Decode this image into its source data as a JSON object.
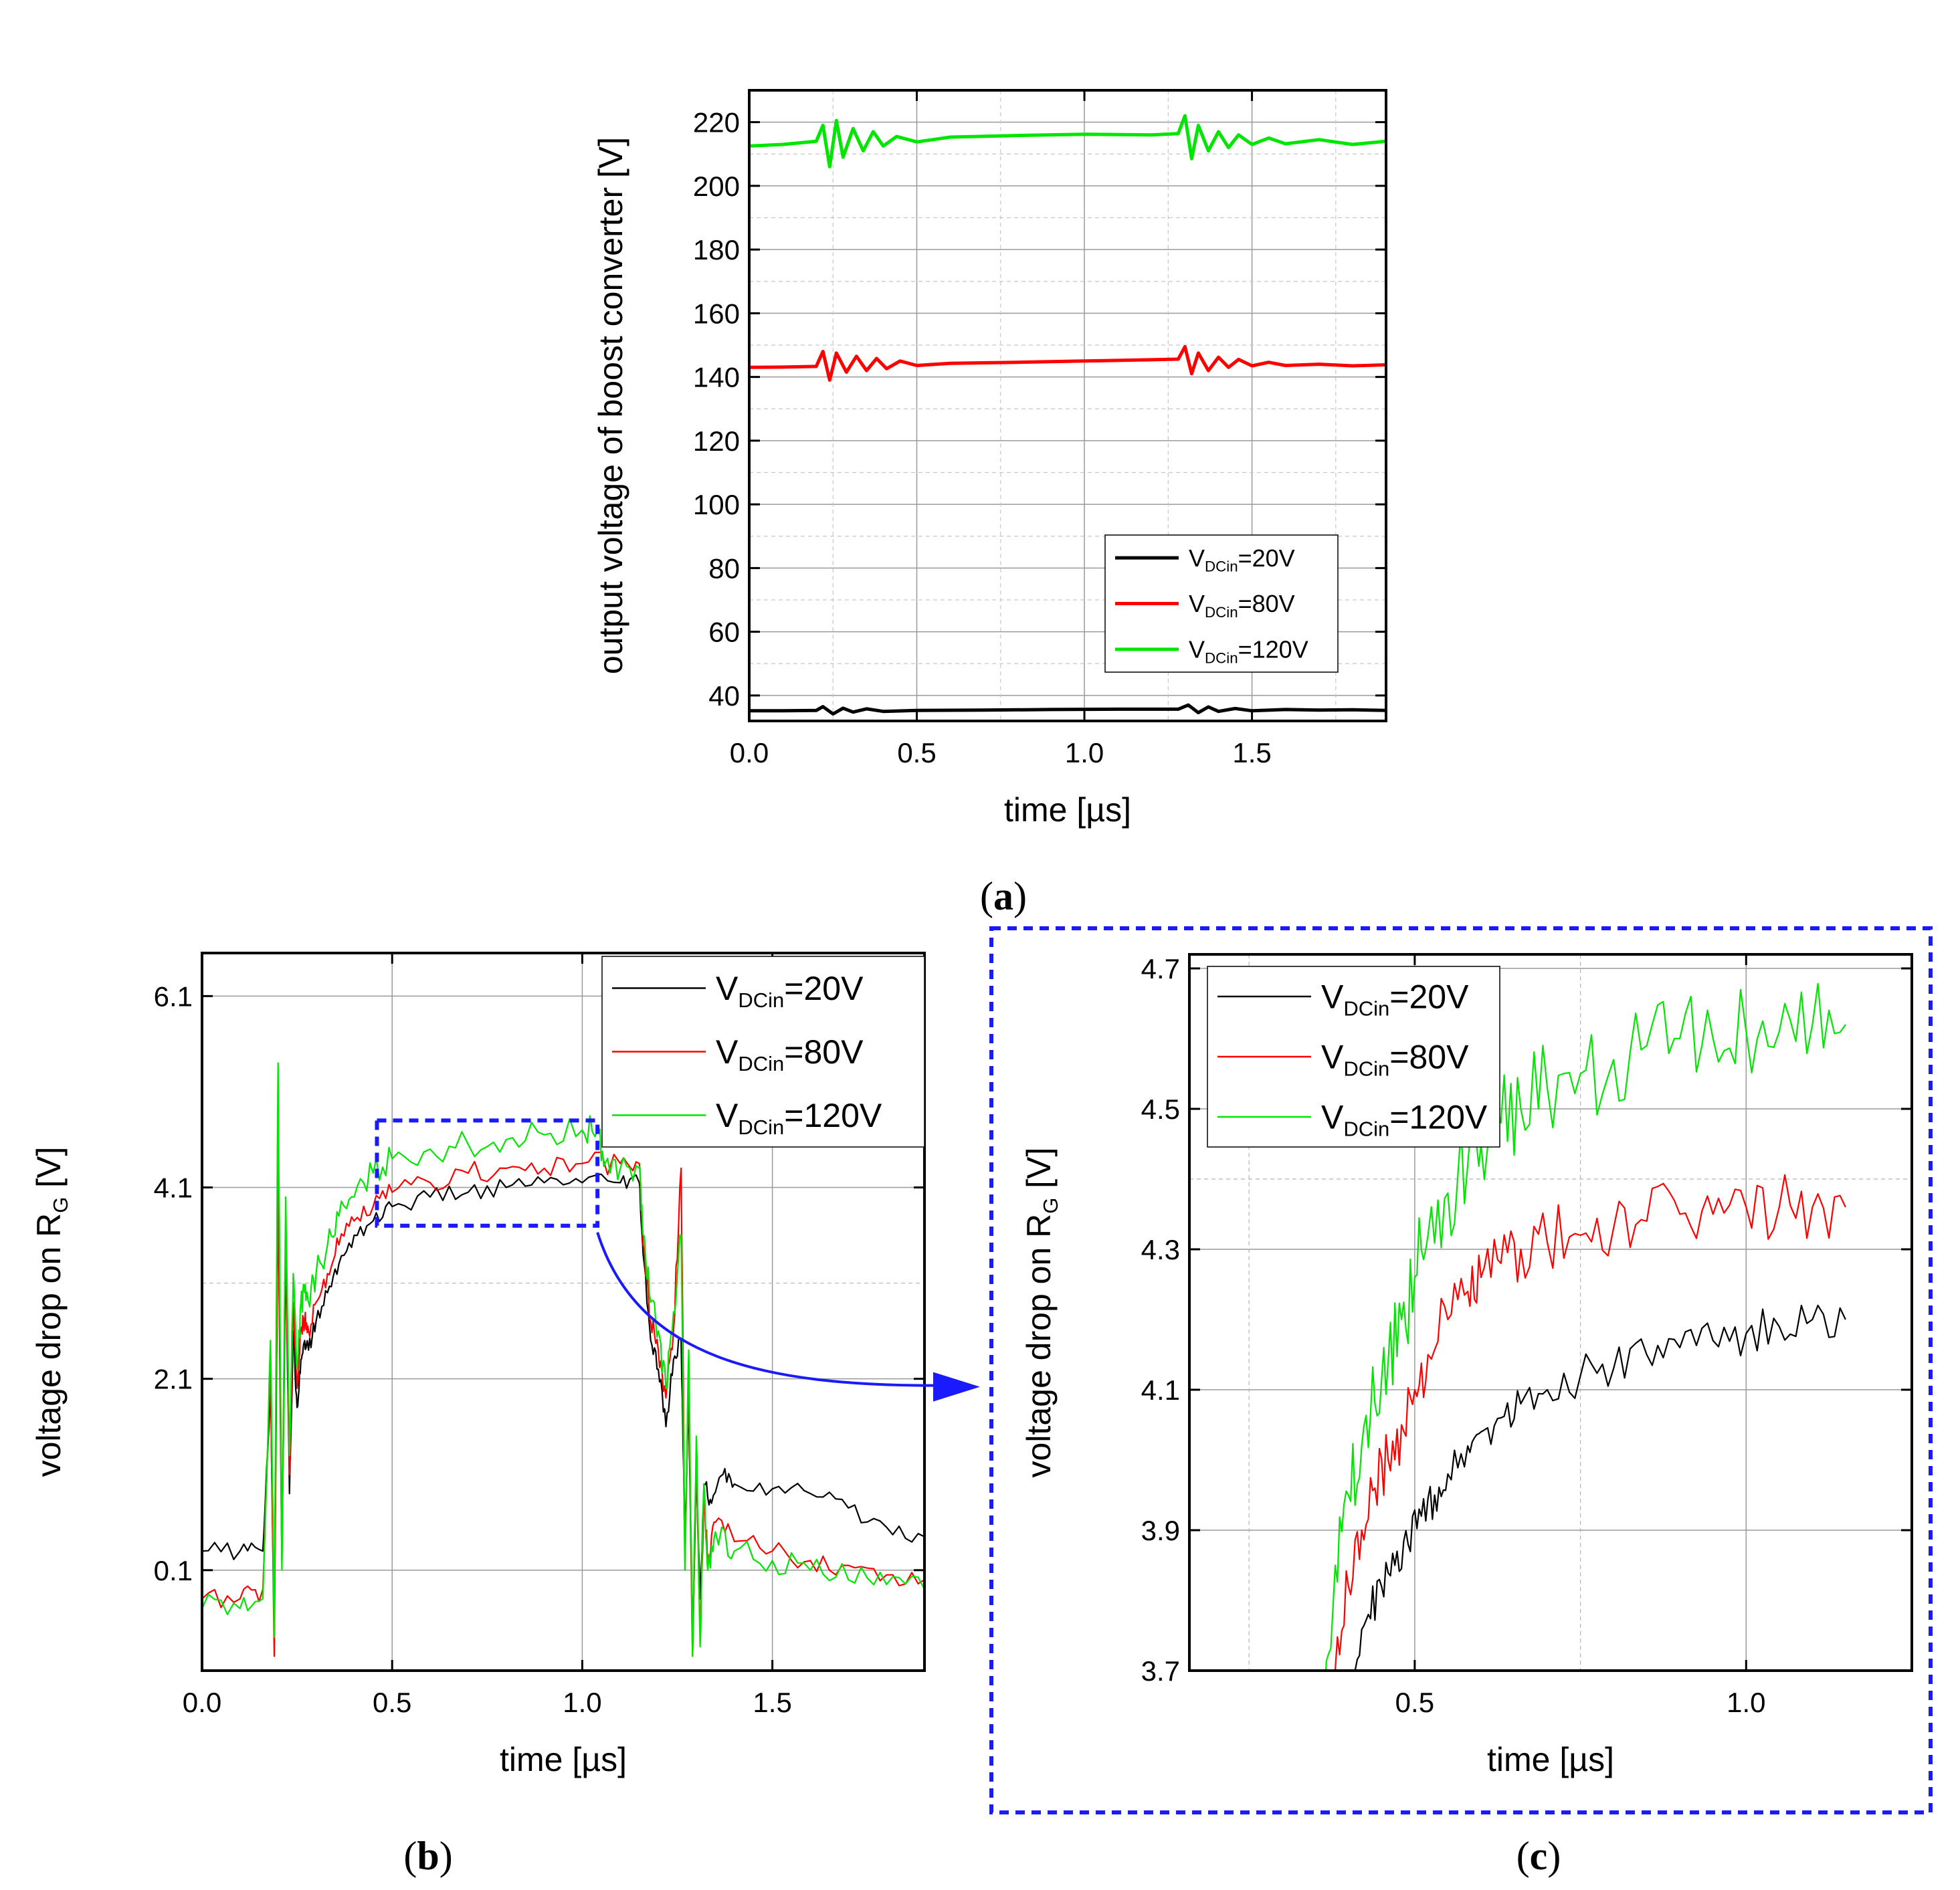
{
  "colors": {
    "black": "#000000",
    "red": "#ff0000",
    "green": "#00e600",
    "blue": "#1a1aff",
    "grid": "#9a9a9a"
  },
  "chart_data": [
    {
      "id": "a",
      "panel_label": "a",
      "type": "line",
      "xlabel": "time [µs]",
      "ylabel": "output voltage of boost converter [V]",
      "xlim": [
        0.0,
        1.9
      ],
      "ylim": [
        32,
        230
      ],
      "xticks": [
        0.0,
        0.5,
        1.0,
        1.5
      ],
      "xtick_labels": [
        "0.0",
        "0.5",
        "1.0",
        "1.5"
      ],
      "yticks": [
        40,
        60,
        80,
        100,
        120,
        140,
        160,
        180,
        200,
        220
      ],
      "ytick_labels": [
        "40",
        "60",
        "80",
        "100",
        "120",
        "140",
        "160",
        "180",
        "200",
        "220"
      ],
      "grid": true,
      "legend_position": "lower-right",
      "series": [
        {
          "key": "vdc20",
          "name_main": "V",
          "name_sub": "DCin",
          "name_tail": "=20V",
          "color": "#000000",
          "x": [
            0.0,
            0.1,
            0.2,
            0.22,
            0.25,
            0.28,
            0.31,
            0.35,
            0.4,
            0.5,
            0.7,
            0.9,
            1.1,
            1.28,
            1.31,
            1.34,
            1.37,
            1.4,
            1.45,
            1.5,
            1.6,
            1.7,
            1.8,
            1.9
          ],
          "y": [
            35.2,
            35.2,
            35.3,
            36.5,
            34.2,
            36.0,
            34.8,
            35.8,
            35.0,
            35.3,
            35.4,
            35.6,
            35.7,
            35.7,
            37.0,
            34.6,
            36.4,
            35.0,
            35.9,
            35.2,
            35.6,
            35.4,
            35.5,
            35.3
          ]
        },
        {
          "key": "vdc80",
          "name_main": "V",
          "name_sub": "DCin",
          "name_tail": "=80V",
          "color": "#ff0000",
          "x": [
            0.0,
            0.1,
            0.2,
            0.22,
            0.24,
            0.26,
            0.29,
            0.32,
            0.35,
            0.38,
            0.41,
            0.45,
            0.5,
            0.6,
            0.8,
            1.0,
            1.2,
            1.28,
            1.3,
            1.32,
            1.34,
            1.37,
            1.4,
            1.43,
            1.46,
            1.5,
            1.55,
            1.6,
            1.7,
            1.8,
            1.9
          ],
          "y": [
            143.0,
            143.1,
            143.3,
            148.0,
            139.0,
            147.5,
            141.5,
            146.5,
            142.0,
            145.8,
            142.6,
            145.0,
            143.6,
            144.3,
            144.6,
            145.0,
            145.4,
            145.6,
            149.5,
            141.0,
            147.5,
            142.0,
            146.2,
            143.0,
            145.5,
            143.5,
            144.6,
            143.6,
            144.0,
            143.5,
            143.8
          ]
        },
        {
          "key": "vdc120",
          "name_main": "V",
          "name_sub": "DCin",
          "name_tail": "=120V",
          "color": "#00e600",
          "x": [
            0.0,
            0.1,
            0.2,
            0.22,
            0.24,
            0.26,
            0.28,
            0.31,
            0.34,
            0.37,
            0.4,
            0.44,
            0.5,
            0.6,
            0.8,
            1.0,
            1.2,
            1.28,
            1.3,
            1.32,
            1.34,
            1.37,
            1.4,
            1.43,
            1.46,
            1.5,
            1.55,
            1.6,
            1.7,
            1.8,
            1.9
          ],
          "y": [
            212.5,
            213.0,
            214.0,
            219.0,
            206.0,
            220.5,
            209.0,
            218.0,
            211.0,
            217.0,
            212.5,
            215.5,
            213.8,
            215.3,
            215.8,
            216.2,
            216.0,
            216.4,
            222.0,
            208.5,
            219.0,
            211.0,
            217.0,
            212.0,
            216.0,
            213.0,
            215.0,
            213.2,
            214.5,
            213.0,
            214.0
          ]
        }
      ]
    },
    {
      "id": "b",
      "panel_label": "b",
      "type": "line",
      "xlabel": "time [µs]",
      "ylabel_main": "voltage drop on R",
      "ylabel_sub": "G",
      "ylabel_tail": " [V]",
      "xlim": [
        0.0,
        1.9
      ],
      "ylim": [
        -0.95,
        6.55
      ],
      "xticks": [
        0.0,
        0.5,
        1.0,
        1.5
      ],
      "xtick_labels": [
        "0.0",
        "0.5",
        "1.0",
        "1.5"
      ],
      "yticks": [
        0.1,
        2.1,
        4.1,
        6.1
      ],
      "ytick_labels": [
        "0.1",
        "2.1",
        "4.1",
        "6.1"
      ],
      "minor_y_grid": [
        3.1
      ],
      "grid": true,
      "legend_position": "top-right",
      "zoom_box": {
        "x": [
          0.46,
          1.04
        ],
        "y": [
          3.7,
          4.8
        ]
      },
      "series": [
        {
          "key": "vdc20",
          "name_main": "V",
          "name_sub": "DCin",
          "name_tail": "=20V",
          "color": "#000000",
          "x": [
            0.0,
            0.1,
            0.16,
            0.18,
            0.19,
            0.2,
            0.21,
            0.22,
            0.23,
            0.24,
            0.25,
            0.26,
            0.27,
            0.28,
            0.3,
            0.33,
            0.36,
            0.4,
            0.45,
            0.5,
            0.6,
            0.7,
            0.8,
            0.9,
            1.0,
            1.1,
            1.15,
            1.16,
            1.18,
            1.2,
            1.22,
            1.24,
            1.26,
            1.27,
            1.28,
            1.29,
            1.3,
            1.31,
            1.32,
            1.34,
            1.37,
            1.4,
            1.5,
            1.6,
            1.7,
            1.8,
            1.9
          ],
          "y": [
            0.3,
            0.3,
            0.3,
            2.0,
            -0.5,
            4.2,
            0.2,
            3.5,
            0.9,
            2.6,
            1.8,
            2.3,
            2.5,
            2.4,
            2.7,
            3.0,
            3.3,
            3.6,
            3.75,
            3.9,
            4.0,
            4.05,
            4.1,
            4.15,
            4.15,
            4.15,
            4.15,
            3.4,
            2.5,
            2.2,
            1.6,
            2.3,
            2.5,
            0.4,
            1.9,
            -0.7,
            1.2,
            -0.2,
            1.0,
            0.8,
            1.1,
            1.0,
            0.95,
            0.9,
            0.75,
            0.55,
            0.45
          ]
        },
        {
          "key": "vdc80",
          "name_main": "V",
          "name_sub": "DCin",
          "name_tail": "=80V",
          "color": "#ff0000",
          "x": [
            0.0,
            0.1,
            0.16,
            0.18,
            0.19,
            0.2,
            0.21,
            0.22,
            0.23,
            0.24,
            0.25,
            0.26,
            0.27,
            0.28,
            0.3,
            0.33,
            0.36,
            0.4,
            0.45,
            0.5,
            0.6,
            0.7,
            0.8,
            0.9,
            1.0,
            1.1,
            1.15,
            1.16,
            1.18,
            1.2,
            1.22,
            1.24,
            1.26,
            1.27,
            1.28,
            1.29,
            1.3,
            1.31,
            1.32,
            1.33,
            1.35,
            1.4,
            1.5,
            1.6,
            1.7,
            1.8,
            1.9
          ],
          "y": [
            -0.2,
            -0.2,
            -0.1,
            2.2,
            -0.8,
            4.3,
            0.3,
            3.7,
            1.1,
            2.9,
            2.0,
            2.6,
            2.7,
            2.6,
            2.9,
            3.2,
            3.5,
            3.75,
            3.9,
            4.05,
            4.15,
            4.25,
            4.3,
            4.3,
            4.35,
            4.35,
            4.35,
            3.5,
            2.7,
            2.4,
            1.9,
            2.6,
            4.3,
            0.2,
            2.1,
            -0.8,
            1.3,
            -0.6,
            0.9,
            0.2,
            0.6,
            0.4,
            0.3,
            0.2,
            0.15,
            0.05,
            0.0
          ]
        },
        {
          "key": "vdc120",
          "name_main": "V",
          "name_sub": "DCin",
          "name_tail": "=120V",
          "color": "#00e600",
          "x": [
            0.0,
            0.1,
            0.16,
            0.18,
            0.19,
            0.2,
            0.21,
            0.22,
            0.23,
            0.24,
            0.25,
            0.26,
            0.27,
            0.28,
            0.3,
            0.33,
            0.36,
            0.4,
            0.45,
            0.5,
            0.6,
            0.7,
            0.8,
            0.9,
            1.0,
            1.04,
            1.06,
            1.1,
            1.15,
            1.16,
            1.18,
            1.2,
            1.22,
            1.24,
            1.26,
            1.27,
            1.28,
            1.29,
            1.3,
            1.31,
            1.32,
            1.33,
            1.35,
            1.4,
            1.5,
            1.6,
            1.7,
            1.8,
            1.9
          ],
          "y": [
            -0.3,
            -0.3,
            -0.2,
            2.5,
            -0.6,
            5.4,
            0.1,
            4.0,
            1.3,
            3.2,
            2.2,
            2.9,
            3.0,
            2.9,
            3.2,
            3.5,
            3.8,
            4.0,
            4.25,
            4.4,
            4.5,
            4.55,
            4.6,
            4.65,
            4.7,
            4.7,
            4.35,
            4.3,
            4.3,
            3.6,
            2.9,
            2.6,
            2.0,
            2.8,
            3.6,
            0.1,
            2.4,
            -0.8,
            1.5,
            -0.7,
            1.0,
            0.1,
            0.5,
            0.3,
            0.2,
            0.1,
            0.0,
            -0.05,
            -0.1
          ]
        }
      ]
    },
    {
      "id": "c",
      "panel_label": "c",
      "type": "line",
      "xlabel": "time [µs]",
      "ylabel_main": "voltage drop on R",
      "ylabel_sub": "G",
      "ylabel_tail": " [V]",
      "xlim": [
        0.16,
        1.25
      ],
      "ylim": [
        3.7,
        4.72
      ],
      "xticks": [
        0.5,
        1.0
      ],
      "xtick_labels": [
        "0.5",
        "1.0"
      ],
      "yticks": [
        3.7,
        3.9,
        4.1,
        4.3,
        4.5,
        4.7
      ],
      "ytick_labels": [
        "3.7",
        "3.9",
        "4.1",
        "4.3",
        "4.5",
        "4.7"
      ],
      "minor_y_grid": [
        4.4
      ],
      "minor_x_grid": [
        0.25,
        0.75
      ],
      "grid": true,
      "legend_position": "top-left",
      "series": [
        {
          "key": "vdc20",
          "name_main": "V",
          "name_sub": "DCin",
          "name_tail": "=20V",
          "color": "#000000",
          "x": [
            0.41,
            0.43,
            0.45,
            0.47,
            0.49,
            0.51,
            0.53,
            0.55,
            0.58,
            0.6,
            0.63,
            0.66,
            0.7,
            0.75,
            0.8,
            0.85,
            0.9,
            0.95,
            1.0,
            1.05,
            1.1,
            1.15
          ],
          "y": [
            3.7,
            3.78,
            3.82,
            3.85,
            3.88,
            3.92,
            3.95,
            3.98,
            4.02,
            4.04,
            4.06,
            4.08,
            4.1,
            4.12,
            4.13,
            4.15,
            4.16,
            4.17,
            4.18,
            4.19,
            4.2,
            4.2
          ]
        },
        {
          "key": "vdc80",
          "name_main": "V",
          "name_sub": "DCin",
          "name_tail": "=80V",
          "color": "#ff0000",
          "x": [
            0.38,
            0.4,
            0.42,
            0.44,
            0.46,
            0.48,
            0.5,
            0.52,
            0.55,
            0.58,
            0.6,
            0.63,
            0.66,
            0.7,
            0.75,
            0.8,
            0.85,
            0.9,
            0.95,
            1.0,
            1.05,
            1.1,
            1.15
          ],
          "y": [
            3.7,
            3.82,
            3.9,
            3.96,
            4.0,
            4.05,
            4.1,
            4.15,
            4.2,
            4.24,
            4.26,
            4.28,
            4.3,
            4.31,
            4.32,
            4.33,
            4.34,
            4.35,
            4.35,
            4.36,
            4.36,
            4.36,
            4.36
          ]
        },
        {
          "key": "vdc120",
          "name_main": "V",
          "name_sub": "DCin",
          "name_tail": "=120V",
          "color": "#00e600",
          "x": [
            0.36,
            0.38,
            0.4,
            0.42,
            0.44,
            0.46,
            0.48,
            0.5,
            0.52,
            0.55,
            0.58,
            0.6,
            0.63,
            0.66,
            0.7,
            0.75,
            0.8,
            0.85,
            0.9,
            0.95,
            1.0,
            1.05,
            1.1,
            1.15
          ],
          "y": [
            3.7,
            3.85,
            3.95,
            4.02,
            4.08,
            4.14,
            4.2,
            4.26,
            4.32,
            4.38,
            4.42,
            4.45,
            4.48,
            4.5,
            4.53,
            4.55,
            4.57,
            4.59,
            4.6,
            4.6,
            4.61,
            4.61,
            4.62,
            4.62
          ]
        }
      ]
    }
  ]
}
